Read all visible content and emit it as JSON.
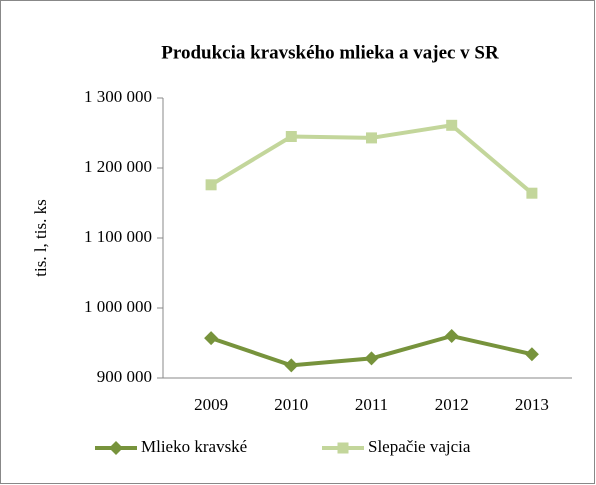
{
  "chart_data": {
    "type": "line",
    "title": "Produkcia kravského mlieka a vajec v SR",
    "ylabel": "tis. l, tis. ks",
    "categories": [
      "2009",
      "2010",
      "2011",
      "2012",
      "2013"
    ],
    "series": [
      {
        "name": "Mlieko kravské",
        "color": "#77933c",
        "marker": "diamond",
        "values": [
          957000,
          918000,
          928000,
          960000,
          934000
        ]
      },
      {
        "name": "Slepačie vajcia",
        "color": "#c3d69b",
        "marker": "square",
        "values": [
          1176000,
          1245000,
          1243000,
          1261000,
          1164000
        ]
      }
    ],
    "ylim": [
      900000,
      1300000
    ],
    "yticks": [
      {
        "value": 900000,
        "label": "900 000"
      },
      {
        "value": 1000000,
        "label": "1 000 000"
      },
      {
        "value": 1100000,
        "label": "1 100 000"
      },
      {
        "value": 1200000,
        "label": "1 200 000"
      },
      {
        "value": 1300000,
        "label": "1 300 000"
      }
    ],
    "grid": false,
    "legend": "bottom"
  }
}
